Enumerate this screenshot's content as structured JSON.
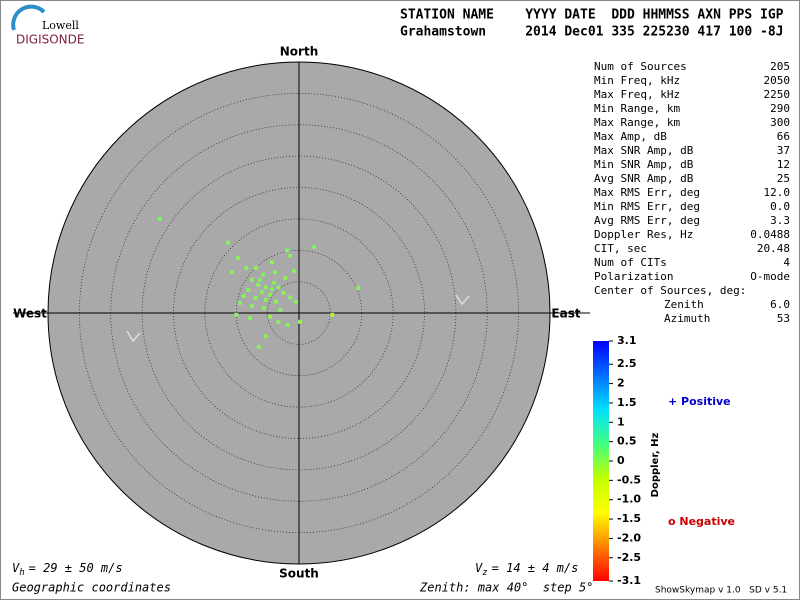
{
  "logo": {
    "top": "Lowell",
    "bottom": "DIGISONDE"
  },
  "chart_data": {
    "type": "skymap",
    "header": {
      "labels": "STATION NAME    YYYY DATE  DDD HHMMSS AXN PPS IGP",
      "values": "Grahamstown     2014 Dec01 335 225230 417 100 -8J"
    },
    "directions": {
      "north": "North",
      "south": "South",
      "west": "West",
      "east": "East"
    },
    "rlim": [
      0,
      40
    ],
    "rticks": [
      5,
      10,
      15,
      20,
      25,
      30,
      35
    ],
    "background": "#a9a9a9",
    "stats": [
      [
        "Num of Sources",
        "205"
      ],
      [
        "Min Freq, kHz",
        "2050"
      ],
      [
        "Max Freq, kHz",
        "2250"
      ],
      [
        "Min Range, km",
        "290"
      ],
      [
        "Max Range, km",
        "300"
      ],
      [
        "Max Amp, dB",
        "66"
      ],
      [
        "Max SNR Amp, dB",
        "37"
      ],
      [
        "Min SNR Amp, dB",
        "12"
      ],
      [
        "Avg SNR Amp, dB",
        "25"
      ],
      [
        "Max RMS Err, deg",
        "12.0"
      ],
      [
        "Min RMS Err, deg",
        "0.0"
      ],
      [
        "Avg RMS Err, deg",
        "3.3"
      ],
      [
        "Doppler Res, Hz",
        "0.0488"
      ],
      [
        "CIT, sec",
        "20.48"
      ],
      [
        "Num of CITs",
        "4"
      ],
      [
        "Polarization",
        "O-mode"
      ]
    ],
    "center": {
      "label": "Center of Sources, deg:",
      "rows": [
        [
          "Zenith",
          "6.0"
        ],
        [
          "Azimuth",
          "53"
        ]
      ]
    },
    "colorbar_title": "Doppler, Hz",
    "colormap": [
      "#0000ff",
      "#0070ff",
      "#00e0ff",
      "#40ff80",
      "#c0ff00",
      "#ffff00",
      "#ff8000",
      "#ff0000"
    ],
    "clim": [
      -3.1,
      3.1
    ],
    "cticks": [
      3.1,
      2.5,
      2,
      1.5,
      1,
      0.5,
      0,
      -0.5,
      {
        "value": -1,
        "label": "-1.0"
      },
      -1.5,
      {
        "value": -2,
        "label": "-2.0"
      },
      -2.5,
      -3.1
    ],
    "legend": {
      "positive": "+ Positive",
      "negative": "o Negative"
    },
    "points": {
      "x": [
        -22.2,
        2.4,
        -11.3,
        -1.9,
        -1.4,
        -9.7,
        -4.3,
        -8.4,
        -10.7,
        -6.9,
        -5.7,
        -3.8,
        -0.8,
        -2.2,
        -7.5,
        -6.5,
        -5.3,
        -4.3,
        -3.3,
        -8.1,
        -5.9,
        -4.6,
        -2.5,
        -1.4,
        -8.8,
        -6.9,
        -5.3,
        -3.7,
        -9.4,
        -7.5,
        -5.6,
        -3.0,
        -10.0,
        -4.6,
        -3.3,
        -1.8,
        -7.8,
        0.2,
        5.3,
        9.4,
        -6.4,
        -5.3,
        -0.5,
        -4.0,
        -6.2
      ],
      "y": [
        15.0,
        10.5,
        11.2,
        10.0,
        9.1,
        8.8,
        8.1,
        7.2,
        6.5,
        7.2,
        6.1,
        6.5,
        6.7,
        5.6,
        5.3,
        4.5,
        4.1,
        3.8,
        4.1,
        3.7,
        3.3,
        2.9,
        3.2,
        2.5,
        2.7,
        2.4,
        2.1,
        1.8,
        1.6,
        1.1,
        0.8,
        0.5,
        -0.3,
        -0.6,
        -1.4,
        -1.9,
        -0.8,
        -1.4,
        -0.3,
        4.0,
        -5.4,
        -3.7,
        1.8,
        4.8,
        5.3
      ],
      "doppler": [
        0.1,
        0,
        0,
        0.1,
        0,
        0,
        -0.1,
        0,
        0,
        0,
        0.1,
        0,
        0,
        -0.1,
        0,
        0,
        0,
        0.1,
        0,
        0,
        0,
        0,
        -0.1,
        0,
        0,
        0,
        0.1,
        0,
        0,
        0,
        0,
        0,
        0,
        -0.2,
        0,
        0,
        0,
        -0.2,
        -0.6,
        0,
        0,
        0,
        0,
        0,
        0.1
      ]
    },
    "vh": {
      "symbol": "V",
      "subscript": "h",
      "text": "= 29 ± 50 m/s"
    },
    "vz": {
      "symbol": "V",
      "subscript": "z",
      "text": "= 14 ± 4 m/s"
    },
    "coordinates": "Geographic coordinates",
    "zenith_note": "Zenith: max 40°  step 5°",
    "version": "ShowSkymap v 1.0   SD v 5.1"
  }
}
